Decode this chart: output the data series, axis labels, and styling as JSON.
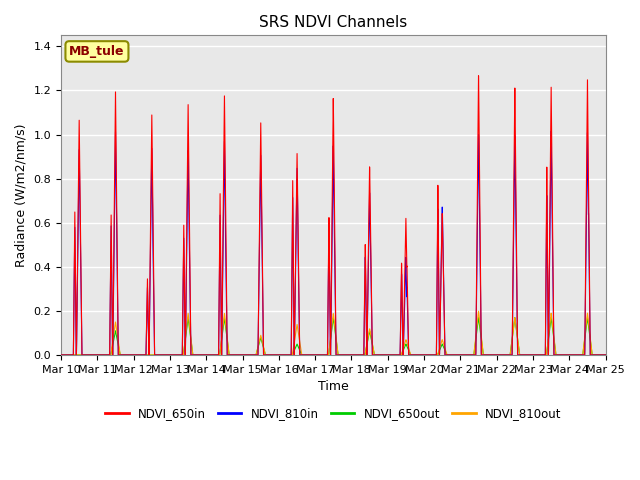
{
  "title": "SRS NDVI Channels",
  "xlabel": "Time",
  "ylabel": "Radiance (W/m2/nm/s)",
  "annotation_text": "MB_tule",
  "annotation_color": "#8B0000",
  "annotation_bg": "#FFFFA0",
  "annotation_border": "#8B8B00",
  "ylim": [
    0.0,
    1.45
  ],
  "yticks": [
    0.0,
    0.2,
    0.4,
    0.6,
    0.8,
    1.0,
    1.2,
    1.4
  ],
  "xtick_labels": [
    "Mar 10",
    "Mar 11",
    "Mar 12",
    "Mar 13",
    "Mar 14",
    "Mar 15",
    "Mar 16",
    "Mar 17",
    "Mar 18",
    "Mar 19",
    "Mar 20",
    "Mar 21",
    "Mar 22",
    "Mar 23",
    "Mar 24",
    "Mar 25"
  ],
  "line_colors": {
    "NDVI_650in": "#FF0000",
    "NDVI_810in": "#0000FF",
    "NDVI_650out": "#00CC00",
    "NDVI_810out": "#FFA500"
  },
  "background_color": "#E8E8E8",
  "grid_color": "#FFFFFF",
  "num_days": 15,
  "peak_650": [
    1.05,
    1.19,
    1.08,
    1.17,
    1.18,
    1.06,
    0.91,
    1.19,
    0.87,
    0.63,
    0.65,
    1.28,
    1.22,
    1.22,
    1.25
  ],
  "peak_810": [
    0.9,
    1.0,
    0.91,
    0.96,
    0.96,
    0.9,
    0.82,
    0.97,
    0.75,
    0.45,
    0.68,
    1.01,
    1.0,
    1.02,
    1.01
  ],
  "peak_out650": [
    0.0,
    0.11,
    0.0,
    0.17,
    0.17,
    0.08,
    0.05,
    0.17,
    0.11,
    0.05,
    0.05,
    0.17,
    0.17,
    0.17,
    0.17
  ],
  "peak_out810": [
    0.0,
    0.15,
    0.0,
    0.19,
    0.19,
    0.09,
    0.14,
    0.19,
    0.12,
    0.07,
    0.07,
    0.2,
    0.17,
    0.19,
    0.19
  ],
  "sub_peak_650": [
    0.65,
    0.64,
    0.35,
    0.6,
    0.75,
    0.0,
    0.82,
    0.65,
    0.52,
    0.43,
    0.79,
    0.0,
    0.0,
    0.86,
    0.0
  ],
  "sub_peak_810": [
    0.58,
    0.59,
    0.31,
    0.54,
    0.65,
    0.0,
    0.74,
    0.58,
    0.46,
    0.38,
    0.68,
    0.0,
    0.0,
    0.73,
    0.0
  ],
  "figsize": [
    6.4,
    4.8
  ],
  "dpi": 100
}
